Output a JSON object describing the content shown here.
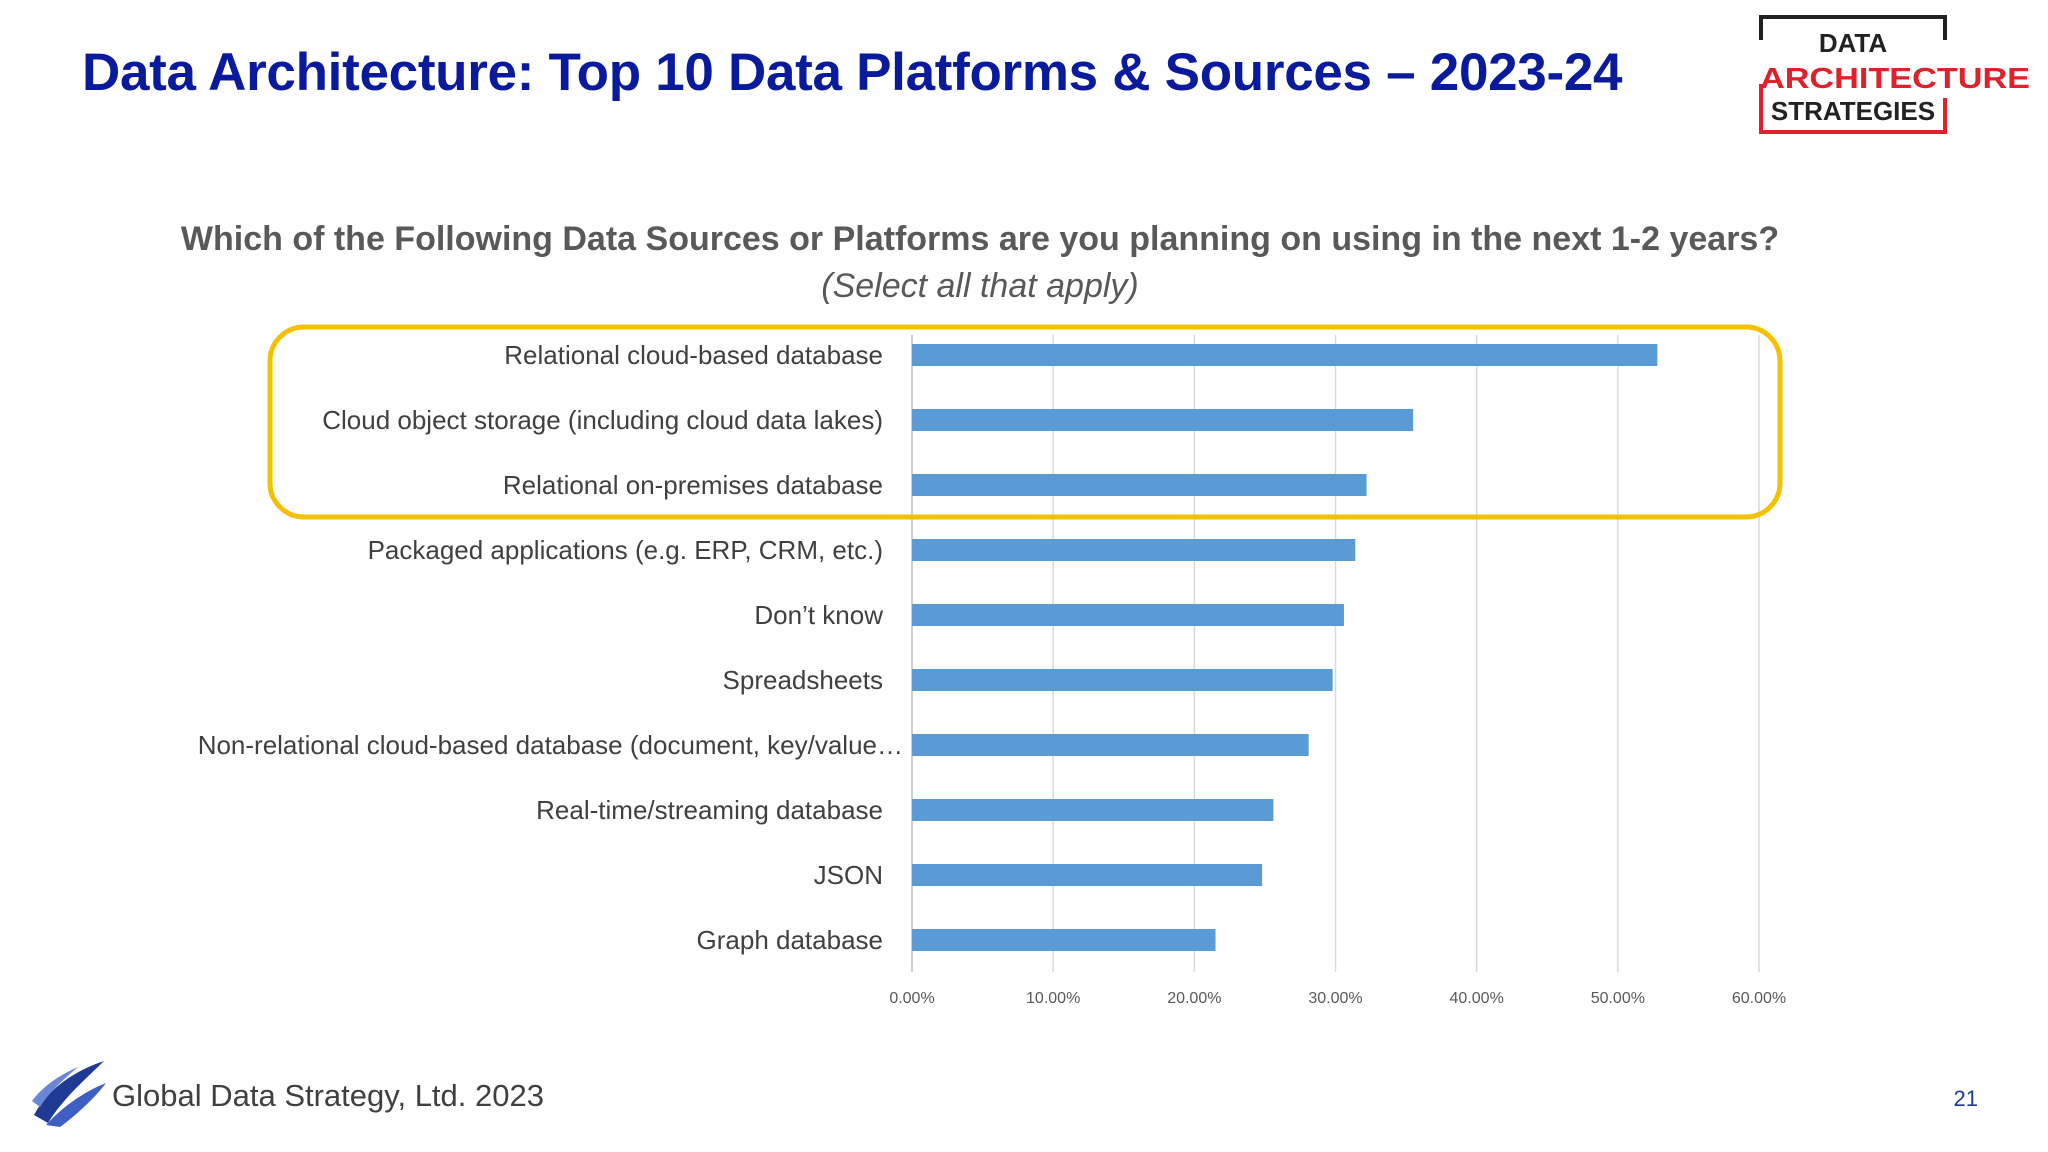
{
  "slide": {
    "title": "Data Architecture:  Top 10 Data Platforms & Sources – 2023-24",
    "question": "Which of the Following Data Sources or Platforms are you planning on using in the next 1-2 years?",
    "subquestion": "(Select all that apply)",
    "footer": "Global Data Strategy, Ltd. 2023",
    "page_number": "21"
  },
  "logo": {
    "line1": "DATA",
    "line2": "ARCHITECTURE",
    "line3": "STRATEGIES"
  },
  "colors": {
    "title": "#0a1a9c",
    "bar": "#5b9bd5",
    "highlight": "#f5c000",
    "logo_red": "#e0202a"
  },
  "chart_data": {
    "type": "bar",
    "orientation": "horizontal",
    "categories": [
      "Relational cloud-based database",
      "Cloud object storage (including cloud data lakes)",
      "Relational on-premises database",
      "Packaged applications (e.g. ERP, CRM, etc.)",
      "Don’t know",
      "Spreadsheets",
      "Non-relational cloud-based database (document, key/value…",
      "Real-time/streaming database",
      "JSON",
      "Graph database"
    ],
    "values": [
      52.8,
      35.5,
      32.2,
      31.4,
      30.6,
      29.8,
      28.1,
      25.6,
      24.8,
      21.5
    ],
    "xlim": [
      0,
      60
    ],
    "ticks": [
      "0.00%",
      "10.00%",
      "20.00%",
      "30.00%",
      "40.00%",
      "50.00%",
      "60.00%"
    ],
    "grid": "vertical",
    "highlighted_categories": 3
  }
}
